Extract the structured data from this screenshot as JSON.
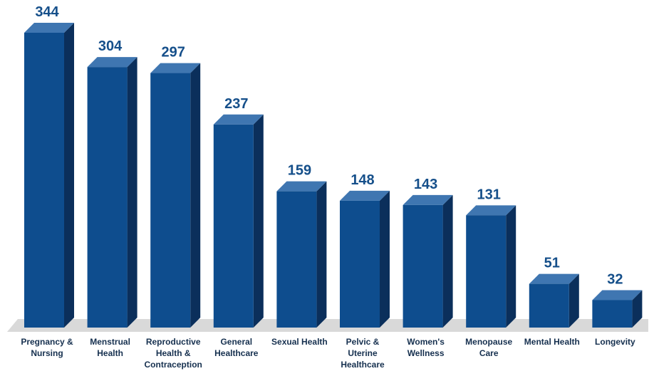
{
  "chart_data": {
    "type": "bar",
    "style": "3d-column",
    "categories": [
      "Pregnancy & Nursing",
      "Menstrual Health",
      "Reproductive Health & Contraception",
      "General Healthcare",
      "Sexual Health",
      "Pelvic & Uterine Healthcare",
      "Women's Wellness",
      "Menopause Care",
      "Mental Health",
      "Longevity"
    ],
    "category_label_lines": [
      [
        "Pregnancy &",
        "Nursing"
      ],
      [
        "Menstrual",
        "Health"
      ],
      [
        "Reproductive",
        "Health &",
        "Contraception"
      ],
      [
        "General",
        "Healthcare"
      ],
      [
        "Sexual Health"
      ],
      [
        "Pelvic &",
        "Uterine",
        "Healthcare"
      ],
      [
        "Women's",
        "Wellness"
      ],
      [
        "Menopause",
        "Care"
      ],
      [
        "Mental Health"
      ],
      [
        "Longevity"
      ]
    ],
    "values": [
      344,
      304,
      297,
      237,
      159,
      148,
      143,
      131,
      51,
      32
    ],
    "value_labels": [
      "344",
      "304",
      "297",
      "237",
      "159",
      "148",
      "143",
      "131",
      "51",
      "32"
    ],
    "title": "",
    "xlabel": "",
    "ylabel": "",
    "ylim": [
      0,
      344
    ],
    "grid": false,
    "legend": "none",
    "colors": {
      "bar_front": "#0e4d8e",
      "bar_top": "#3f76b1",
      "bar_side": "#0b2f5b",
      "value_label": "#154f8a",
      "category_label": "#16304f",
      "floor": "#d9d9d9"
    }
  }
}
